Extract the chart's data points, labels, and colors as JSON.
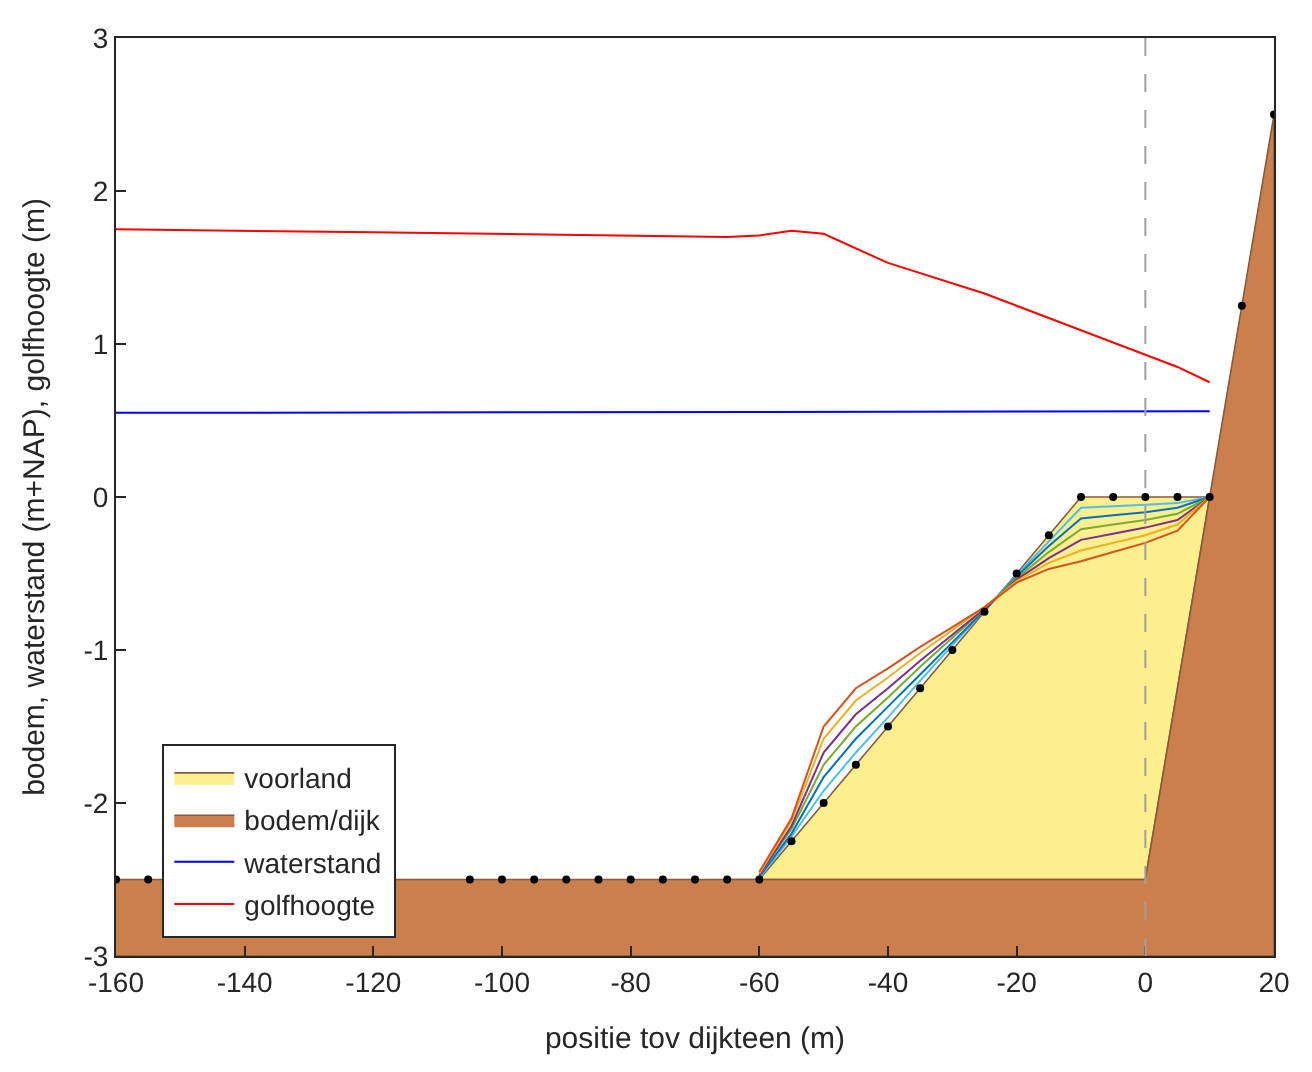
{
  "chart_data": {
    "type": "line",
    "xlabel": "positie tov dijkteen (m)",
    "ylabel": "bodem, waterstand (m+NAP), golfhoogte (m)",
    "xlim": [
      -160,
      20
    ],
    "xticks": [
      -160,
      -140,
      -120,
      -100,
      -80,
      -60,
      -40,
      -20,
      0,
      20
    ],
    "ylim": [
      -3,
      3
    ],
    "yticks": [
      -3,
      -2,
      -1,
      0,
      1,
      2,
      3
    ],
    "legend": "bottom left",
    "ref_lines": [
      {
        "axis": "x",
        "value": 0,
        "color": "#a0a0a0",
        "line_style": "dashed"
      }
    ],
    "series": [
      {
        "name": "voorland",
        "type": "area",
        "color": "#fdee8e",
        "x": [
          -65,
          -60,
          -55,
          -50,
          -45,
          -40,
          -35,
          -30,
          -25,
          -20,
          -15,
          -10,
          -5,
          0,
          5,
          10,
          0,
          -65
        ],
        "values": [
          -2.5,
          -2.5,
          -2.25,
          -2,
          -1.75,
          -1.5,
          -1.25,
          -1,
          -0.75,
          -0.5,
          -0.25,
          0,
          0,
          0,
          0,
          0,
          -2.5,
          -2.5
        ]
      },
      {
        "color": "#4dbeee",
        "x": [
          -60,
          -55,
          -50,
          -45,
          -40,
          -35,
          -30,
          -25,
          -20,
          -15,
          -10,
          -5,
          0,
          5,
          10
        ],
        "values": [
          -2.49,
          -2.22,
          -1.92,
          -1.67,
          -1.44,
          -1.2,
          -0.97,
          -0.74,
          -0.51,
          -0.29,
          -0.07,
          -0.06,
          -0.05,
          -0.04,
          0
        ]
      },
      {
        "color": "#0072bd",
        "x": [
          -60,
          -55,
          -50,
          -45,
          -40,
          -35,
          -30,
          -25,
          -20,
          -15,
          -10,
          -5,
          0,
          5,
          10
        ],
        "values": [
          -2.48,
          -2.2,
          -1.83,
          -1.58,
          -1.37,
          -1.16,
          -0.95,
          -0.74,
          -0.52,
          -0.32,
          -0.14,
          -0.12,
          -0.1,
          -0.07,
          0
        ]
      },
      {
        "color": "#77ac30",
        "x": [
          -60,
          -55,
          -50,
          -45,
          -40,
          -35,
          -30,
          -25,
          -20,
          -15,
          -10,
          -5,
          0,
          5,
          10
        ],
        "values": [
          -2.47,
          -2.17,
          -1.75,
          -1.5,
          -1.31,
          -1.11,
          -0.92,
          -0.73,
          -0.53,
          -0.36,
          -0.21,
          -0.18,
          -0.15,
          -0.11,
          0
        ]
      },
      {
        "color": "#7e2f8e",
        "x": [
          -60,
          -55,
          -50,
          -45,
          -40,
          -35,
          -30,
          -25,
          -20,
          -15,
          -10,
          -5,
          0,
          5,
          10
        ],
        "values": [
          -2.47,
          -2.15,
          -1.67,
          -1.42,
          -1.25,
          -1.07,
          -0.9,
          -0.73,
          -0.54,
          -0.4,
          -0.28,
          -0.24,
          -0.2,
          -0.15,
          0
        ]
      },
      {
        "color": "#edb120",
        "x": [
          -60,
          -55,
          -50,
          -45,
          -40,
          -35,
          -30,
          -25,
          -20,
          -15,
          -10,
          -5,
          0,
          5,
          10
        ],
        "values": [
          -2.46,
          -2.12,
          -1.58,
          -1.33,
          -1.18,
          -1.02,
          -0.87,
          -0.72,
          -0.55,
          -0.43,
          -0.35,
          -0.3,
          -0.25,
          -0.18,
          0
        ]
      },
      {
        "color": "#d95319",
        "x": [
          -60,
          -55,
          -50,
          -45,
          -40,
          -35,
          -30,
          -25,
          -20,
          -15,
          -10,
          -5,
          0,
          5,
          10
        ],
        "values": [
          -2.45,
          -2.1,
          -1.5,
          -1.25,
          -1.12,
          -0.98,
          -0.85,
          -0.72,
          -0.56,
          -0.47,
          -0.42,
          -0.36,
          -0.3,
          -0.22,
          0
        ]
      },
      {
        "name": "bodem/dijk",
        "type": "area",
        "color": "#ca7f4d",
        "x": [
          -160,
          0,
          20,
          20,
          -160
        ],
        "values": [
          -2.5,
          -2.5,
          2.5,
          -3,
          -3
        ]
      },
      {
        "type": "scatter",
        "marker": "circle",
        "color": "#000000",
        "x": [
          -160,
          -155,
          -150,
          -145,
          -140,
          -135,
          -130,
          -125,
          -120,
          -115,
          -110,
          -105,
          -100,
          -95,
          -90,
          -85,
          -80,
          -75,
          -70,
          -65,
          -60,
          -55,
          -50,
          -45,
          -40,
          -35,
          -30,
          -25,
          -20,
          -15,
          -10,
          -5,
          0,
          5,
          10,
          15,
          20
        ],
        "values": [
          -2.5,
          -2.5,
          null,
          null,
          null,
          null,
          null,
          null,
          null,
          null,
          null,
          -2.5,
          -2.5,
          -2.5,
          -2.5,
          -2.5,
          -2.5,
          -2.5,
          -2.5,
          -2.5,
          -2.5,
          -2.25,
          -2,
          -1.75,
          -1.5,
          -1.25,
          -1,
          -0.75,
          -0.5,
          -0.25,
          0,
          0,
          0,
          0,
          0,
          1.25,
          2.5
        ]
      },
      {
        "name": "waterstand",
        "color": "#0000ff",
        "x": [
          -160,
          10
        ],
        "values": [
          0.55,
          0.56
        ]
      },
      {
        "name": "golfhoogte",
        "color": "#ff0000",
        "x": [
          -160,
          -120,
          -65,
          -60,
          -55,
          -50,
          -40,
          -25,
          -20,
          0,
          5,
          10
        ],
        "values": [
          1.75,
          1.73,
          1.7,
          1.71,
          1.74,
          1.72,
          1.53,
          1.33,
          1.25,
          0.93,
          0.85,
          0.75
        ]
      }
    ]
  }
}
